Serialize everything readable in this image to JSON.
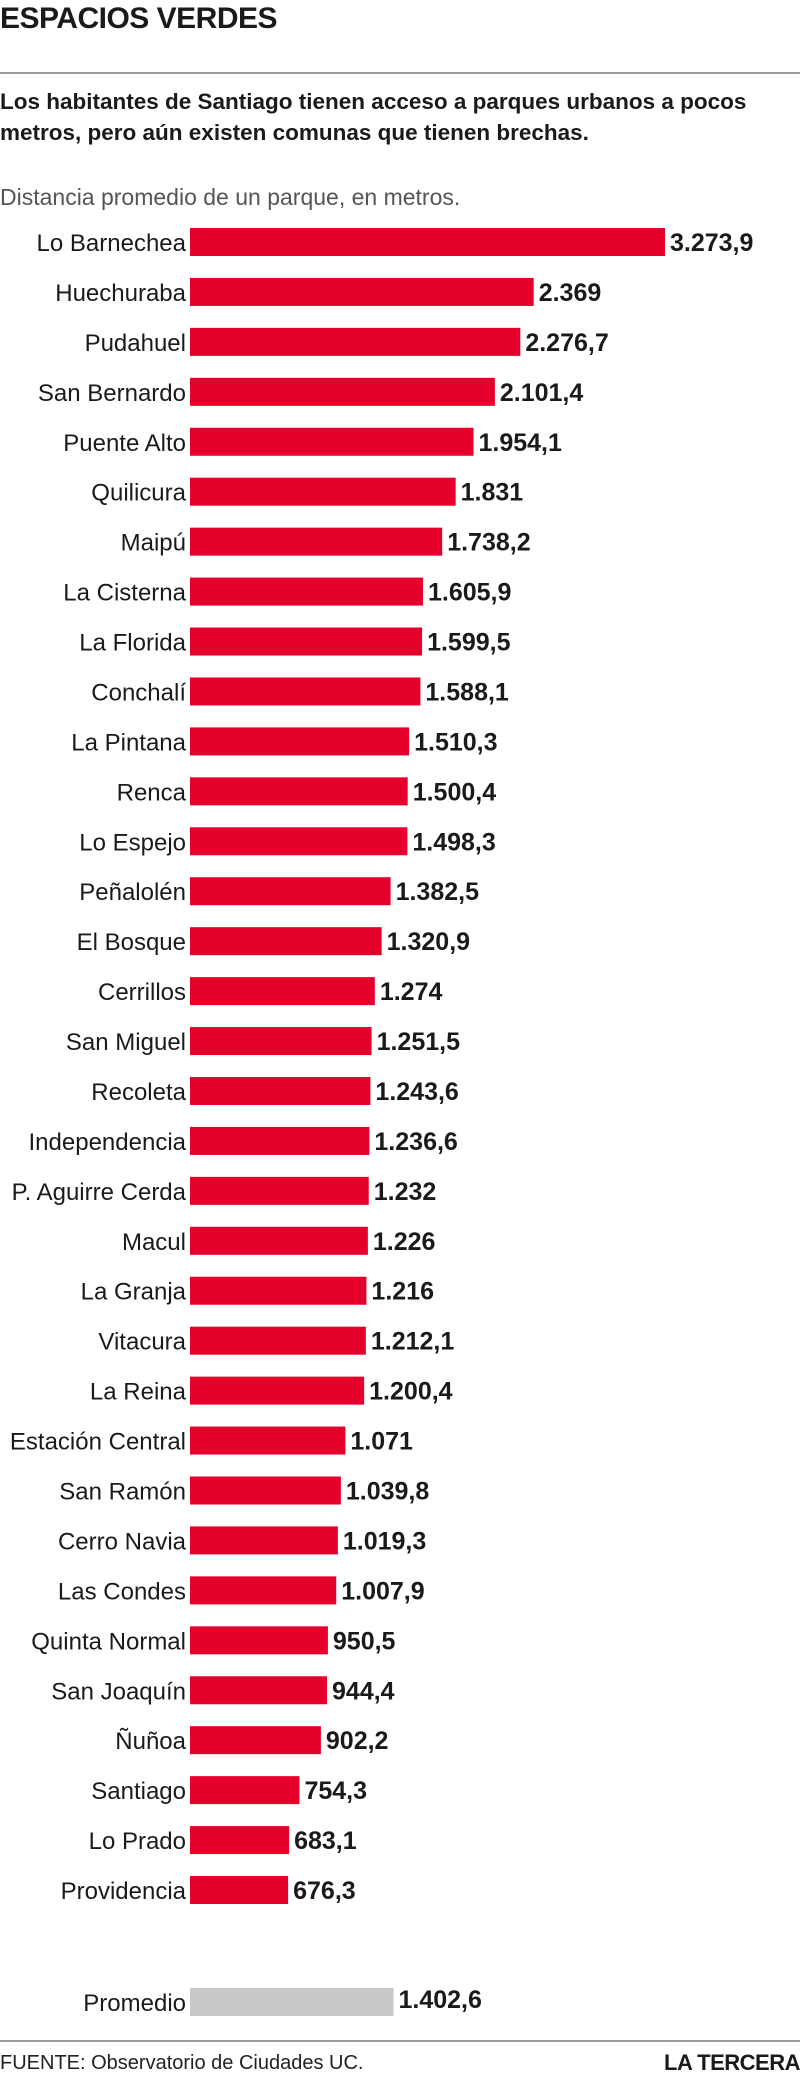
{
  "header": {
    "title": "ESPACIOS VERDES",
    "subtitle": "Los habitantes de Santiago tienen acceso a parques urbanos a pocos metros, pero aún existen comunas que tienen brechas.",
    "measure": "Distancia promedio de un parque, en metros."
  },
  "footer": {
    "source": "FUENTE: Observatorio de Ciudades UC.",
    "brand": "LA TERCERA"
  },
  "colors": {
    "bar": "#e4002b",
    "average": "#c8c8c8",
    "rule": "#9a9a9a"
  },
  "chart_data": {
    "type": "bar",
    "orientation": "horizontal",
    "categories": [
      "Lo Barnechea",
      "Huechuraba",
      "Pudahuel",
      "San Bernardo",
      "Puente Alto",
      "Quilicura",
      "Maipú",
      "La Cisterna",
      "La Florida",
      "Conchalí",
      "La Pintana",
      "Renca",
      "Lo Espejo",
      "Peñalolén",
      "El Bosque",
      "Cerrillos",
      "San Miguel",
      "Recoleta",
      "Independencia",
      "P. Aguirre Cerda",
      "Macul",
      "La Granja",
      "Vitacura",
      "La Reina",
      "Estación Central",
      "San Ramón",
      "Cerro Navia",
      "Las Condes",
      "Quinta Normal",
      "San Joaquín",
      "Ñuñoa",
      "Santiago",
      "Lo Prado",
      "Providencia"
    ],
    "values": [
      3273.9,
      2369,
      2276.7,
      2101.4,
      1954.1,
      1831,
      1738.2,
      1605.9,
      1599.5,
      1588.1,
      1510.3,
      1500.4,
      1498.3,
      1382.5,
      1320.9,
      1274,
      1251.5,
      1243.6,
      1236.6,
      1232,
      1226,
      1216,
      1212.1,
      1200.4,
      1071,
      1039.8,
      1019.3,
      1007.9,
      950.5,
      944.4,
      902.2,
      754.3,
      683.1,
      676.3
    ],
    "value_labels": [
      "3.273,9",
      "2.369",
      "2.276,7",
      "2.101,4",
      "1.954,1",
      "1.831",
      "1.738,2",
      "1.605,9",
      "1.599,5",
      "1.588,1",
      "1.510,3",
      "1.500,4",
      "1.498,3",
      "1.382,5",
      "1.320,9",
      "1.274",
      "1.251,5",
      "1.243,6",
      "1.236,6",
      "1.232",
      "1.226",
      "1.216",
      "1.212,1",
      "1.200,4",
      "1.071",
      "1.039,8",
      "1.019,3",
      "1.007,9",
      "950,5",
      "944,4",
      "902,2",
      "754,3",
      "683,1",
      "676,3"
    ],
    "average": {
      "label": "Promedio",
      "value": 1402.6,
      "value_label": "1.402,6"
    },
    "xlim": [
      0,
      3273.9
    ],
    "grid": false,
    "legend": "none"
  }
}
